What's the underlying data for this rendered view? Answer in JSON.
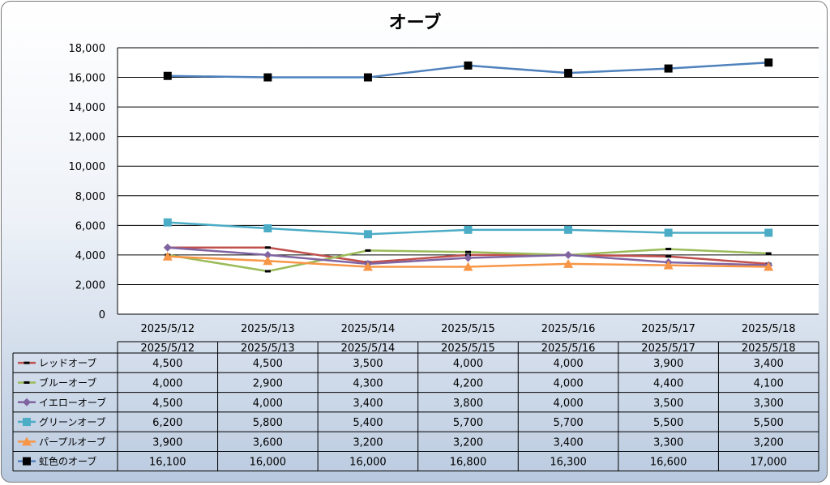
{
  "chart_data": {
    "type": "line",
    "title": "オーブ",
    "categories": [
      "2025/5/12",
      "2025/5/13",
      "2025/5/14",
      "2025/5/15",
      "2025/5/16",
      "2025/5/17",
      "2025/5/18"
    ],
    "y_ticks": [
      "0",
      "2,000",
      "4,000",
      "6,000",
      "8,000",
      "10,000",
      "12,000",
      "14,000",
      "16,000",
      "18,000"
    ],
    "ylim": [
      0,
      18000
    ],
    "grid": true,
    "legend": "data-table",
    "series": [
      {
        "name": "レッドオーブ",
        "color": "#c0504d",
        "marker": "dash",
        "values": [
          4500,
          4500,
          3500,
          4000,
          4000,
          3900,
          3400
        ],
        "labels": [
          "4,500",
          "4,500",
          "3,500",
          "4,000",
          "4,000",
          "3,900",
          "3,400"
        ]
      },
      {
        "name": "ブルーオーブ",
        "color": "#9bbb59",
        "marker": "dash",
        "values": [
          4000,
          2900,
          4300,
          4200,
          4000,
          4400,
          4100
        ],
        "labels": [
          "4,000",
          "2,900",
          "4,300",
          "4,200",
          "4,000",
          "4,400",
          "4,100"
        ]
      },
      {
        "name": "イエローオーブ",
        "color": "#8064a2",
        "marker": "diamond",
        "values": [
          4500,
          4000,
          3400,
          3800,
          4000,
          3500,
          3300
        ],
        "labels": [
          "4,500",
          "4,000",
          "3,400",
          "3,800",
          "4,000",
          "3,500",
          "3,300"
        ]
      },
      {
        "name": "グリーンオーブ",
        "color": "#4bacc6",
        "marker": "square",
        "values": [
          6200,
          5800,
          5400,
          5700,
          5700,
          5500,
          5500
        ],
        "labels": [
          "6,200",
          "5,800",
          "5,400",
          "5,700",
          "5,700",
          "5,500",
          "5,500"
        ]
      },
      {
        "name": "パープルオーブ",
        "color": "#f79646",
        "marker": "triangle",
        "values": [
          3900,
          3600,
          3200,
          3200,
          3400,
          3300,
          3200
        ],
        "labels": [
          "3,900",
          "3,600",
          "3,200",
          "3,200",
          "3,400",
          "3,300",
          "3,200"
        ]
      },
      {
        "name": "虹色のオーブ",
        "color": "#4f81bd",
        "marker": "square-black",
        "values": [
          16100,
          16000,
          16000,
          16800,
          16300,
          16600,
          17000
        ],
        "labels": [
          "16,100",
          "16,000",
          "16,000",
          "16,800",
          "16,300",
          "16,600",
          "17,000"
        ]
      }
    ]
  }
}
